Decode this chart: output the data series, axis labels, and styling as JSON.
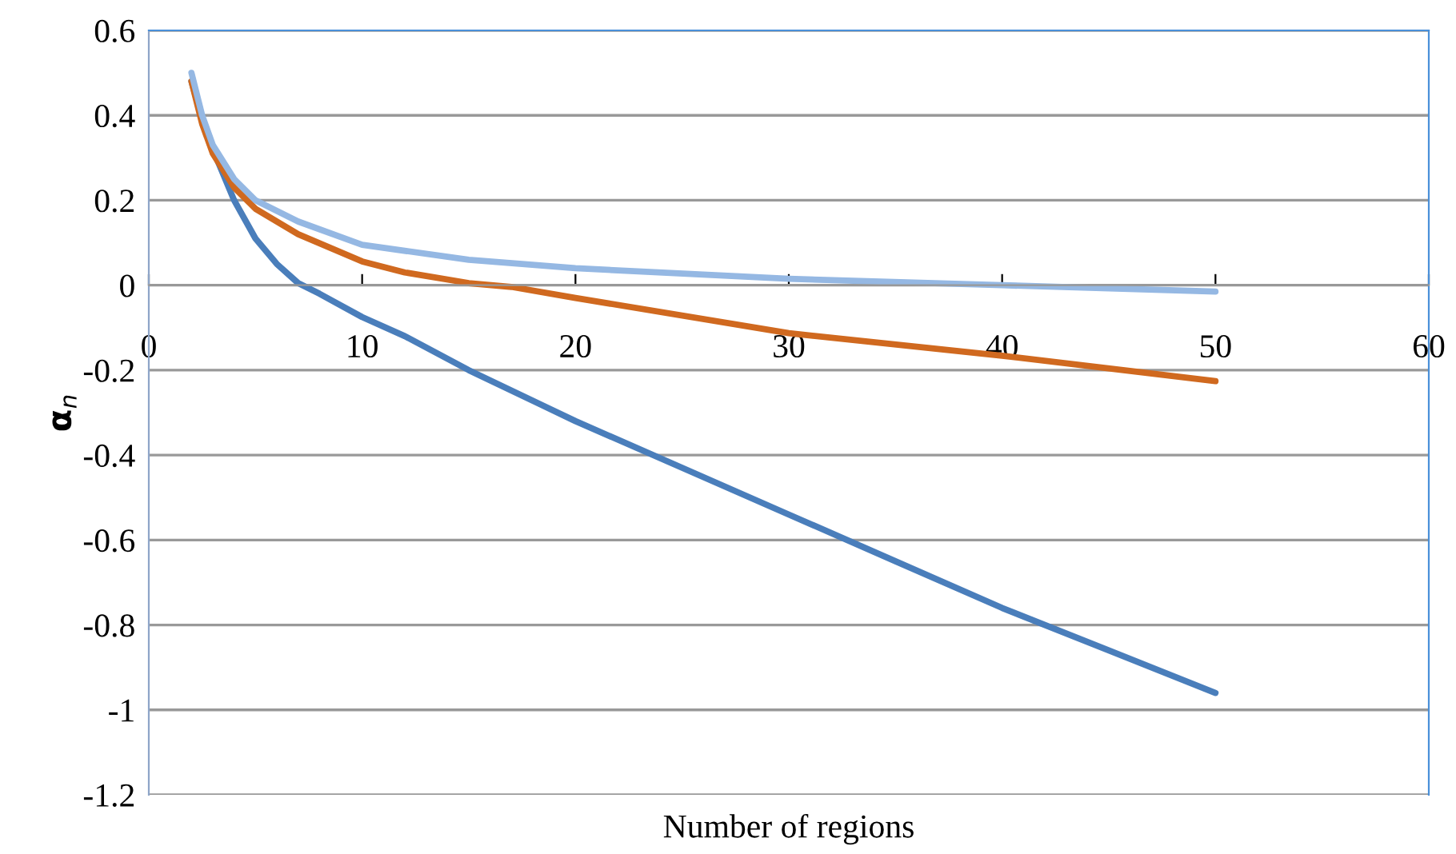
{
  "chart_data": {
    "type": "line",
    "xlabel": "Number of regions",
    "ylabel": "α$_{n}$",
    "xlim": [
      0,
      60
    ],
    "xticks": [
      0,
      10,
      20,
      30,
      40,
      50,
      60
    ],
    "ylim": [
      -1.2,
      0.6
    ],
    "yticks": [
      -1.2,
      -1,
      -0.8,
      -0.6,
      -0.4,
      -0.2,
      0,
      0.2,
      0.4,
      0.6
    ],
    "grid": "y",
    "marker": "none",
    "line_style": "solid",
    "series": [
      {
        "color": "#4a7ebb",
        "x": [
          2,
          2.5,
          3,
          4,
          5,
          6,
          7,
          8,
          10,
          12,
          15,
          20,
          25,
          30,
          35,
          40,
          45,
          50
        ],
        "values": [
          0.48,
          0.39,
          0.32,
          0.2,
          0.11,
          0.05,
          0.005,
          -0.02,
          -0.075,
          -0.12,
          -0.2,
          -0.32,
          -0.43,
          -0.54,
          -0.65,
          -0.76,
          -0.86,
          -0.96
        ]
      },
      {
        "color": "#d0691f",
        "x": [
          2,
          2.5,
          3,
          4,
          5,
          7,
          10,
          12,
          15,
          17,
          20,
          30,
          40,
          50
        ],
        "values": [
          0.48,
          0.38,
          0.31,
          0.23,
          0.18,
          0.12,
          0.056,
          0.03,
          0.005,
          -0.004,
          -0.03,
          -0.113,
          -0.166,
          -0.226
        ]
      },
      {
        "color": "#95b8e3",
        "x": [
          2,
          2.5,
          3,
          4,
          5,
          7,
          10,
          15,
          20,
          30,
          40,
          50
        ],
        "values": [
          0.5,
          0.4,
          0.33,
          0.25,
          0.2,
          0.15,
          0.095,
          0.06,
          0.04,
          0.015,
          0.0,
          -0.015
        ]
      }
    ]
  }
}
